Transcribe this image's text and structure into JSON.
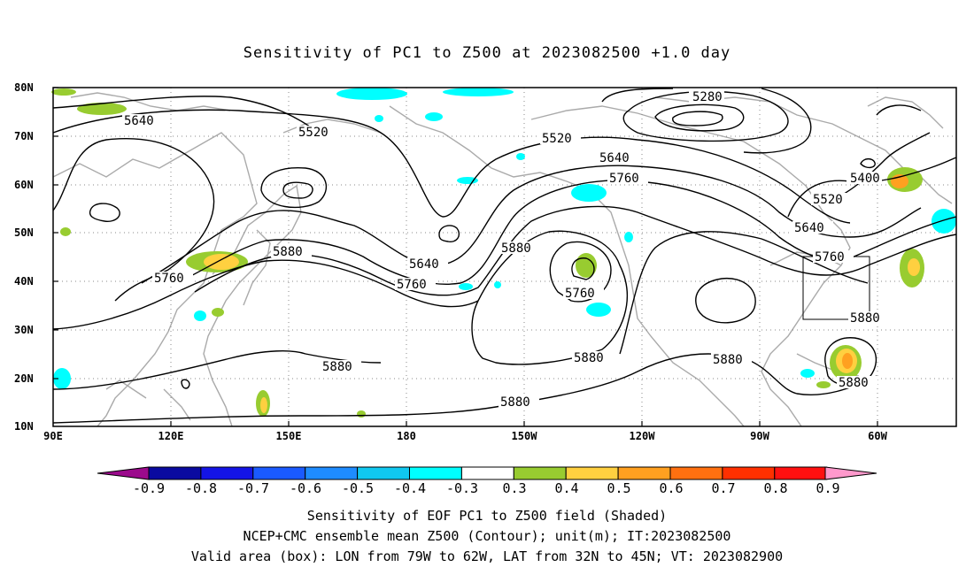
{
  "title": "Sensitivity of PC1 to Z500 at 2023082500 +1.0 day",
  "axes": {
    "lat_ticks": [
      "80N",
      "70N",
      "60N",
      "50N",
      "40N",
      "30N",
      "20N",
      "10N"
    ],
    "lon_ticks": [
      "90E",
      "120E",
      "150E",
      "180",
      "150W",
      "120W",
      "90W",
      "60W"
    ]
  },
  "contours": {
    "color": "#000000",
    "labels": [
      "5280",
      "5400",
      "5520",
      "5520",
      "5520",
      "5640",
      "5640",
      "5640",
      "5640",
      "5760",
      "5760",
      "5760",
      "5760",
      "5760",
      "5880",
      "5880",
      "5880",
      "5880",
      "5880",
      "5880",
      "5880",
      "5880"
    ]
  },
  "colorbar": {
    "labels": [
      "-0.9",
      "-0.8",
      "-0.7",
      "-0.6",
      "-0.5",
      "-0.4",
      "-0.3",
      "0.3",
      "0.4",
      "0.5",
      "0.6",
      "0.7",
      "0.8",
      "0.9"
    ],
    "colors": [
      "#9b0a8c",
      "#0a0aa0",
      "#1414e6",
      "#1a5aff",
      "#1e8cff",
      "#10c8f0",
      "#00ffff",
      "#ffffff",
      "#98cc30",
      "#ffd040",
      "#ffa020",
      "#ff7010",
      "#ff3000",
      "#ff1010",
      "#ff99cc"
    ]
  },
  "footer": {
    "line1": "Sensitivity of EOF PC1 to Z500 field (Shaded)",
    "line2": "NCEP+CMC ensemble mean Z500 (Contour); unit(m); IT:2023082500",
    "line3": "Valid area (box): LON from 79W to 62W, LAT from 32N to 45N; VT: 2023082900"
  }
}
